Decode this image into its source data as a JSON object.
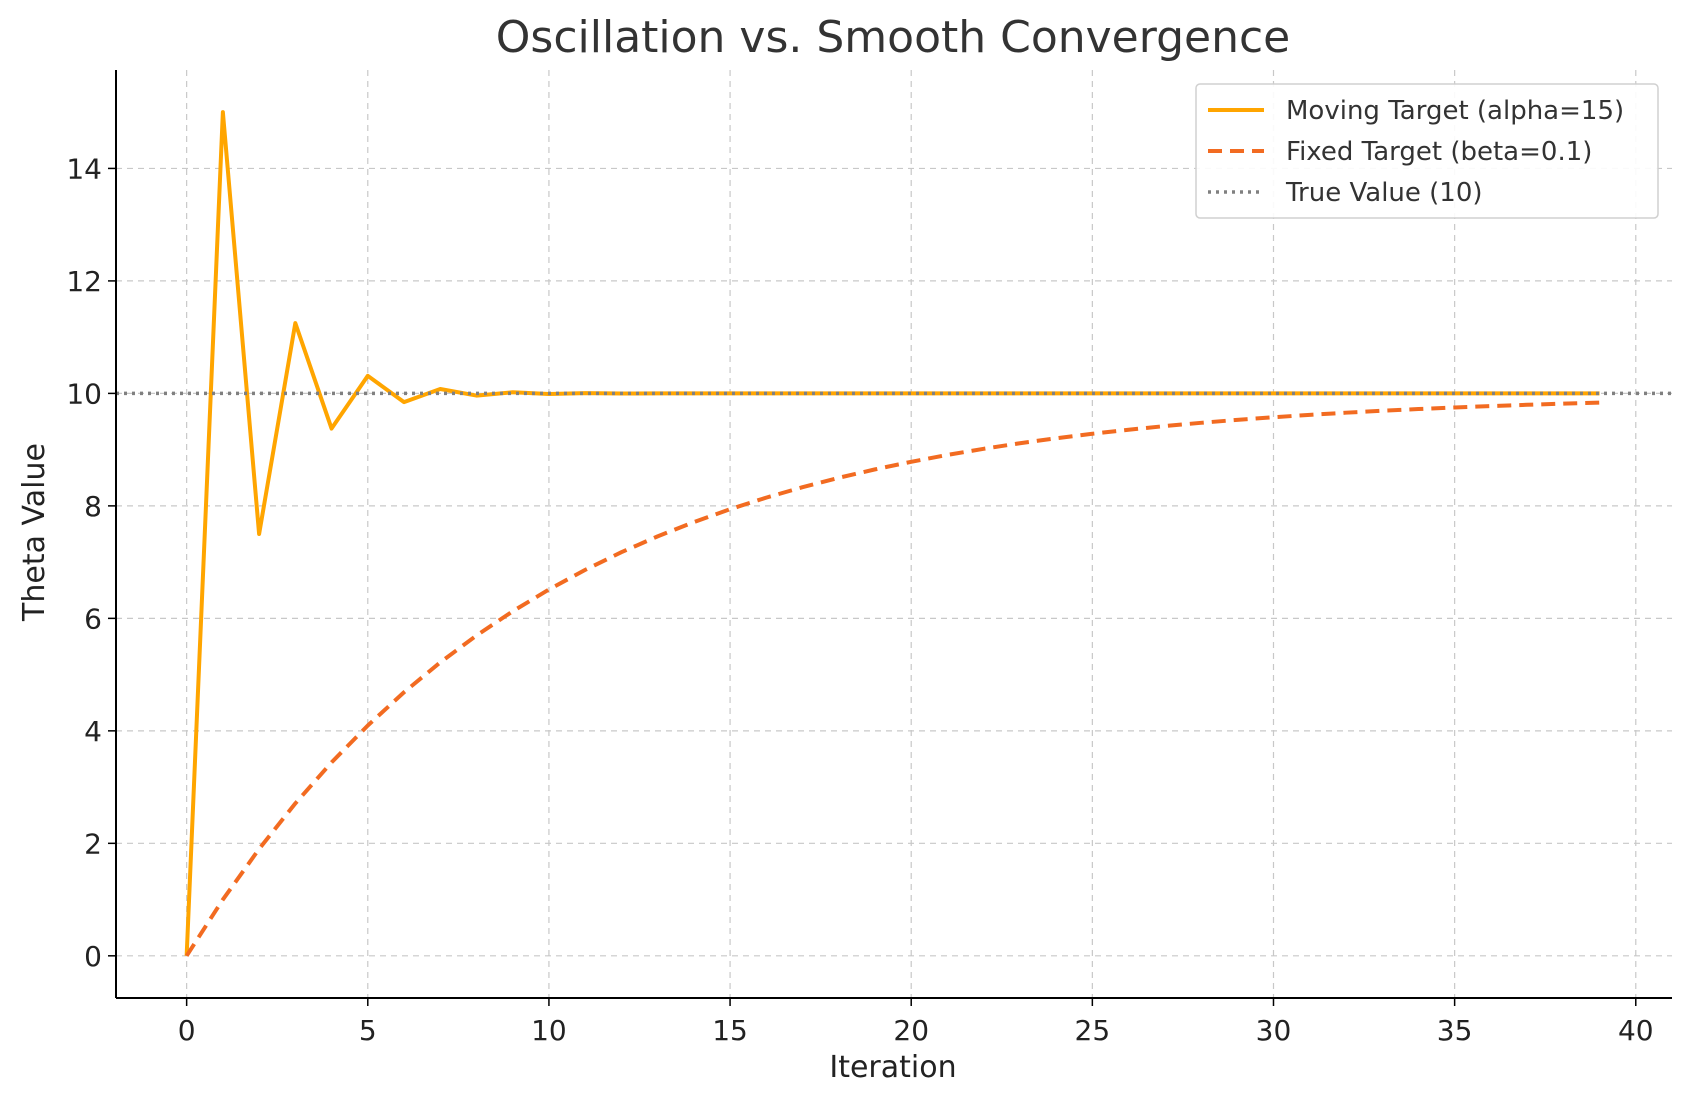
{
  "chart_data": {
    "type": "line",
    "title": "Oscillation vs. Smooth Convergence",
    "xlabel": "Iteration",
    "ylabel": "Theta Value",
    "xlim": [
      -1.95,
      41
    ],
    "ylim": [
      -0.75,
      15.75
    ],
    "xticks": [
      0,
      5,
      10,
      15,
      20,
      25,
      30,
      35,
      40
    ],
    "yticks": [
      0,
      2,
      4,
      6,
      8,
      10,
      12,
      14
    ],
    "grid": true,
    "legend_position": "top-right",
    "series": [
      {
        "name": "Moving Target (alpha=15)",
        "style": "solid",
        "color": "#FFA500",
        "x": [
          0,
          1,
          2,
          3,
          4,
          5,
          6,
          7,
          8,
          9,
          10,
          11,
          12,
          13,
          14,
          15,
          16,
          17,
          18,
          19,
          20,
          21,
          22,
          23,
          24,
          25,
          26,
          27,
          28,
          29,
          30,
          31,
          32,
          33,
          34,
          35,
          36,
          37,
          38,
          39
        ],
        "values": [
          0,
          15,
          7.5,
          11.25,
          9.375,
          10.3125,
          9.844,
          10.078,
          9.961,
          10.02,
          9.99,
          10.005,
          9.998,
          10.001,
          10,
          10,
          10,
          10,
          10,
          10,
          10,
          10,
          10,
          10,
          10,
          10,
          10,
          10,
          10,
          10,
          10,
          10,
          10,
          10,
          10,
          10,
          10,
          10,
          10,
          10
        ]
      },
      {
        "name": "Fixed Target (beta=0.1)",
        "style": "dashed",
        "color": "#F26B21",
        "x": [
          0,
          1,
          2,
          3,
          4,
          5,
          6,
          7,
          8,
          9,
          10,
          11,
          12,
          13,
          14,
          15,
          16,
          17,
          18,
          19,
          20,
          21,
          22,
          23,
          24,
          25,
          26,
          27,
          28,
          29,
          30,
          31,
          32,
          33,
          34,
          35,
          36,
          37,
          38,
          39
        ],
        "values": [
          0,
          1,
          1.9,
          2.71,
          3.439,
          4.095,
          4.686,
          5.217,
          5.695,
          6.126,
          6.513,
          6.862,
          7.176,
          7.458,
          7.712,
          7.941,
          8.147,
          8.332,
          8.499,
          8.649,
          8.784,
          8.906,
          9.015,
          9.114,
          9.202,
          9.282,
          9.354,
          9.419,
          9.477,
          9.529,
          9.576,
          9.618,
          9.657,
          9.691,
          9.722,
          9.75,
          9.775,
          9.797,
          9.818,
          9.836
        ]
      },
      {
        "name": "True Value (10)",
        "style": "dotted",
        "color": "#808080",
        "constant": 10
      }
    ]
  }
}
